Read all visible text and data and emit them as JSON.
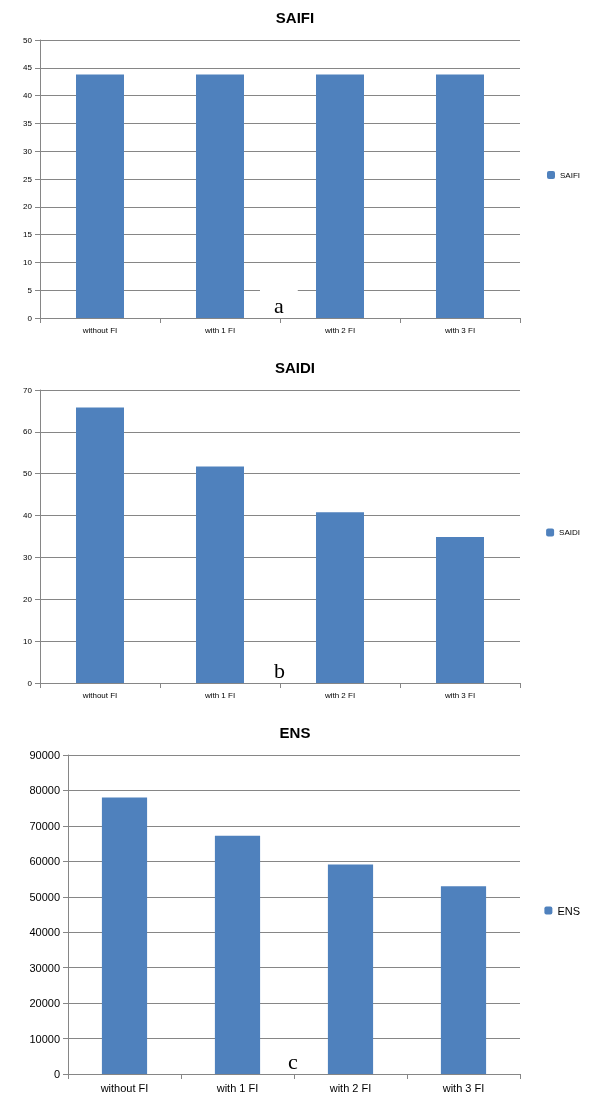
{
  "chart_data": [
    {
      "type": "bar",
      "title": "SAIFI",
      "categories": [
        "without FI",
        "with 1 FI",
        "with 2 FI",
        "with 3 FI"
      ],
      "series": [
        {
          "name": "SAIFI",
          "color": "#4f81bd",
          "values": [
            43.8,
            43.8,
            43.8,
            43.8
          ]
        }
      ],
      "ylim": [
        0,
        50
      ],
      "yticks": [
        0,
        5,
        10,
        15,
        20,
        25,
        30,
        35,
        40,
        45,
        50
      ],
      "grid": "y",
      "legend": "right",
      "annotations": [
        "a"
      ]
    },
    {
      "type": "bar",
      "title": "SAIDI",
      "categories": [
        "without FI",
        "with 1 FI",
        "with 2 FI",
        "with 3 FI"
      ],
      "series": [
        {
          "name": "SAIDI",
          "color": "#4f81bd",
          "values": [
            65.8,
            51.7,
            40.8,
            34.9
          ]
        }
      ],
      "ylim": [
        0,
        70
      ],
      "yticks": [
        0,
        10,
        20,
        30,
        40,
        50,
        60,
        70
      ],
      "grid": "y",
      "legend": "right",
      "annotations": [
        "b"
      ]
    },
    {
      "type": "bar",
      "title": "ENS",
      "categories": [
        "without FI",
        "with 1 FI",
        "with 2 FI",
        "with 3 FI"
      ],
      "series": [
        {
          "name": "ENS",
          "color": "#4f81bd",
          "values": [
            78000,
            67200,
            59100,
            53000
          ]
        }
      ],
      "ylim": [
        0,
        90000
      ],
      "yticks": [
        0,
        10000,
        20000,
        30000,
        40000,
        50000,
        60000,
        70000,
        80000,
        90000
      ],
      "grid": "y",
      "legend": "right",
      "annotations": [
        "c"
      ]
    }
  ]
}
